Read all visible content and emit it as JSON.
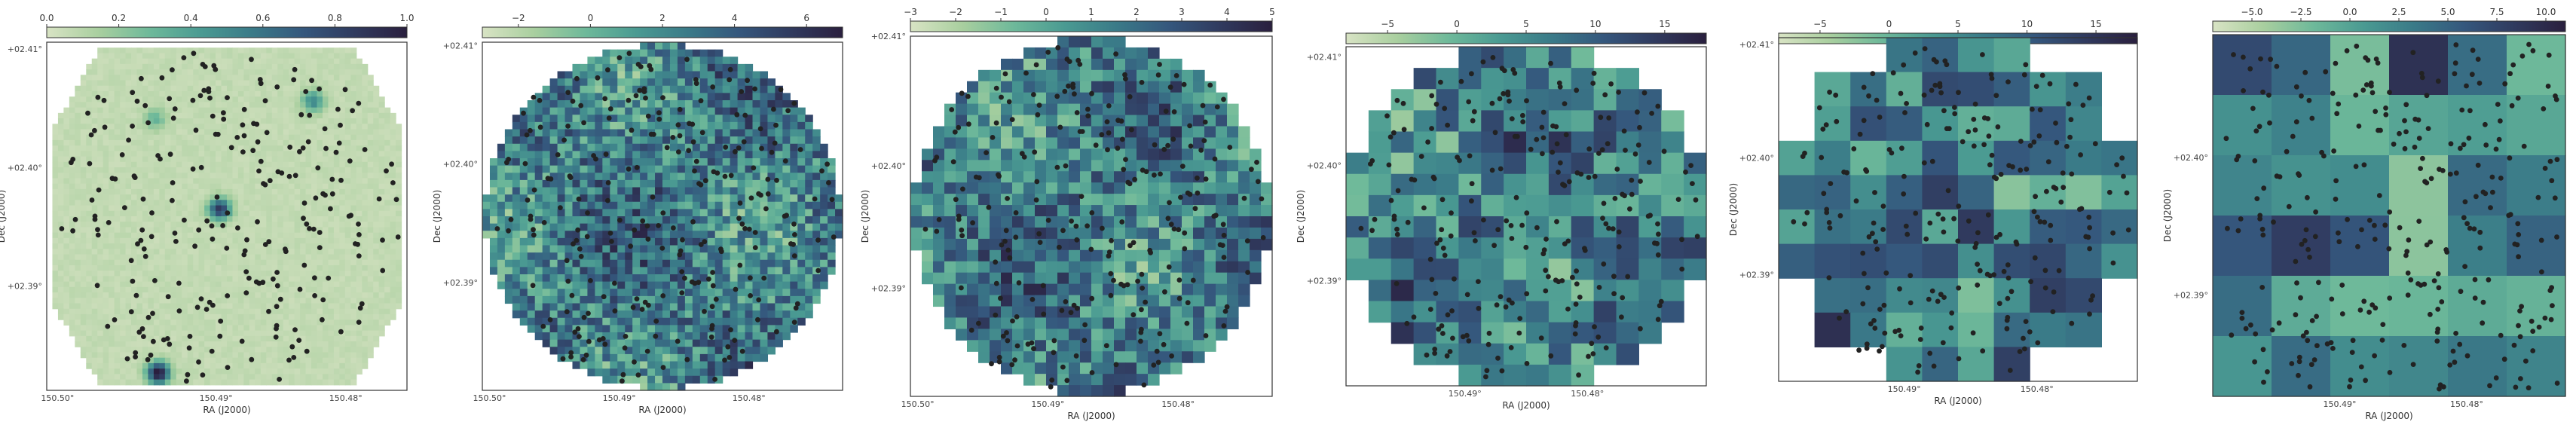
{
  "figure": {
    "colormap": [
      "#d8e3c4",
      "#a9cf9f",
      "#6eb99a",
      "#4a9a92",
      "#3a7a88",
      "#35577d",
      "#303a5e",
      "#2a1f3e"
    ],
    "star_color": "#222222",
    "frame_color": "#333333"
  },
  "chart_data": [
    {
      "type": "heatmap",
      "xlabel": "RA (J2000)",
      "ylabel": "Dec (J2000)",
      "colorbar": {
        "location": "top",
        "ticks": [
          "0.0",
          "0.2",
          "0.4",
          "0.6",
          "0.8",
          "1.0"
        ],
        "vmin": 0.0,
        "vmax": 1.0
      },
      "xticks": [
        "150.50°",
        "150.49°",
        "150.48°"
      ],
      "yticks": [
        "+02.41°",
        "+02.40°",
        "+02.39°"
      ],
      "footprint": "hexagon",
      "grid_resolution": 64,
      "value_range": [
        0,
        1
      ],
      "hotspots": [
        {
          "ra_frac": 0.48,
          "dec_frac": 0.48,
          "value": 0.8
        },
        {
          "ra_frac": 0.74,
          "dec_frac": 0.17,
          "value": 0.45
        },
        {
          "ra_frac": 0.3,
          "dec_frac": 0.22,
          "value": 0.25
        },
        {
          "ra_frac": 0.31,
          "dec_frac": 0.95,
          "value": 1.0
        }
      ],
      "star_count": 300
    },
    {
      "type": "heatmap",
      "xlabel": "RA (J2000)",
      "ylabel": "Dec (J2000)",
      "colorbar": {
        "location": "top",
        "ticks": [
          "−2",
          "0",
          "2",
          "4",
          "6"
        ],
        "vmin": -3,
        "vmax": 7
      },
      "xticks": [
        "150.50°",
        "150.49°",
        "150.48°"
      ],
      "yticks": [
        "+02.41°",
        "+02.40°",
        "+02.39°"
      ],
      "footprint": "circle",
      "grid_resolution": 48,
      "value_range": [
        -3,
        7
      ],
      "star_count": 300
    },
    {
      "type": "heatmap",
      "xlabel": "RA (J2000)",
      "ylabel": "Dec (J2000)",
      "colorbar": {
        "location": "top",
        "ticks": [
          "−3",
          "−2",
          "−1",
          "0",
          "1",
          "2",
          "3",
          "4",
          "5"
        ],
        "vmin": -3,
        "vmax": 5
      },
      "xticks": [
        "150.50°",
        "150.49°",
        "150.48°"
      ],
      "yticks": [
        "+02.41°",
        "+02.40°",
        "+02.39°"
      ],
      "footprint": "circle",
      "grid_resolution": 32,
      "value_range": [
        -3,
        5
      ],
      "star_count": 300
    },
    {
      "type": "heatmap",
      "xlabel": "RA (J2000)",
      "ylabel": "Dec (J2000)",
      "colorbar": {
        "location": "top",
        "ticks": [
          "−5",
          "0",
          "5",
          "10",
          "15"
        ],
        "vmin": -8,
        "vmax": 18
      },
      "xticks": [
        "150.49°",
        "150.48°"
      ],
      "yticks": [
        "+02.41°",
        "+02.40°",
        "+02.39°"
      ],
      "footprint": "circle",
      "grid_resolution": 16,
      "value_range": [
        -8,
        18
      ],
      "star_count": 300
    },
    {
      "type": "heatmap",
      "xlabel": "RA (J2000)",
      "ylabel": "Dec (J2000)",
      "colorbar": {
        "location": "top",
        "ticks": [
          "−5",
          "0",
          "5",
          "10",
          "15"
        ],
        "vmin": -8,
        "vmax": 18
      },
      "xticks": [
        "150.49°",
        "150.48°"
      ],
      "yticks": [
        "+02.41°",
        "+02.40°",
        "+02.39°"
      ],
      "footprint": "circle",
      "grid_resolution": 10,
      "value_range": [
        -8,
        18
      ],
      "star_count": 300
    },
    {
      "type": "heatmap",
      "xlabel": "RA (J2000)",
      "ylabel": "Dec (J2000)",
      "colorbar": {
        "location": "top",
        "ticks": [
          "−5.0",
          "−2.5",
          "0.0",
          "2.5",
          "5.0",
          "7.5",
          "10.0"
        ],
        "vmin": -7,
        "vmax": 11
      },
      "xticks": [
        "150.49°",
        "150.48°"
      ],
      "yticks": [
        "+02.40°",
        "+02.39°"
      ],
      "footprint": "square",
      "grid_resolution": 6,
      "value_range": [
        -7,
        11
      ],
      "star_count": 300
    }
  ]
}
